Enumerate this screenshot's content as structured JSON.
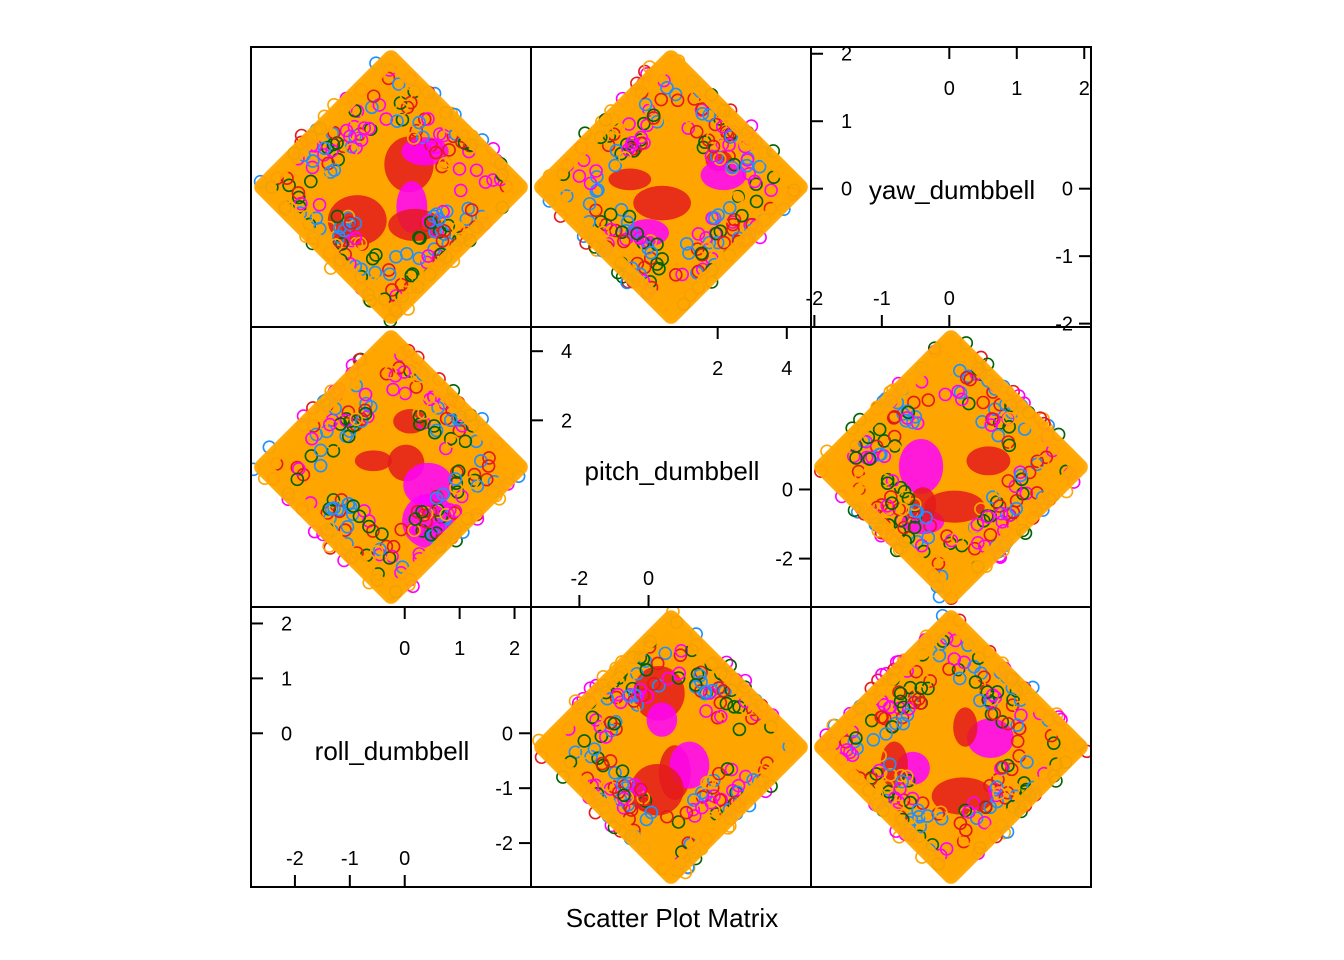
{
  "chart_data": {
    "type": "scatter",
    "title": "Scatter Plot Matrix",
    "variables": [
      "roll_dumbbell",
      "pitch_dumbbell",
      "yaw_dumbbell"
    ],
    "grid": false,
    "groups": [
      {
        "color": "#E41A1C"
      },
      {
        "color": "#FF00FF"
      },
      {
        "color": "#1E90FF"
      },
      {
        "color": "#006400"
      },
      {
        "color": "#FFA500"
      }
    ],
    "axes": {
      "roll_dumbbell": {
        "range": [
          -2.8,
          2.3
        ],
        "ticks_low": [
          -2,
          -1,
          0
        ],
        "ticks_high": [
          0,
          1,
          2
        ],
        "ticks_side_low": [
          -2,
          -1,
          0
        ],
        "ticks_side_high": [
          0,
          1,
          2
        ]
      },
      "pitch_dumbbell": {
        "range": [
          -3.4,
          4.7
        ],
        "ticks_low": [
          -2,
          0
        ],
        "ticks_high": [
          2,
          4
        ],
        "ticks_side_low": [
          -2,
          0
        ],
        "ticks_side_high": [
          2,
          4
        ]
      },
      "yaw_dumbbell": {
        "range": [
          -2.05,
          2.1
        ],
        "ticks_low": [
          -2,
          -1,
          0
        ],
        "ticks_high": [
          0,
          1,
          2
        ],
        "ticks_side_low": [
          -2,
          -1,
          0
        ],
        "ticks_side_high": [
          0,
          1,
          2
        ]
      }
    },
    "tick_labels": {
      "yaw_dumbbell": {
        "top": [
          "0",
          "1",
          "2"
        ],
        "bottom": [
          "-2",
          "-1",
          "0"
        ],
        "left": [
          "-2",
          "-1",
          "0"
        ],
        "right": [
          "0",
          "1",
          "2"
        ]
      },
      "pitch_dumbbell": {
        "top": [
          "2",
          "4"
        ],
        "bottom": [
          "-2",
          "0"
        ],
        "left": [
          "-2",
          "0"
        ],
        "right": [
          "2",
          "4"
        ]
      },
      "roll_dumbbell": {
        "top": [
          "0",
          "1",
          "2"
        ],
        "bottom": [
          "-2",
          "-1",
          "0"
        ],
        "left": [
          "-2",
          "-1",
          "0"
        ],
        "right": [
          "0",
          "1",
          "2"
        ]
      }
    },
    "panel_samples": {
      "roll_vs_pitch": [
        [
          -1.9,
          0.3
        ],
        [
          -1.2,
          1.2
        ],
        [
          -0.4,
          2.1
        ],
        [
          0.3,
          3.3
        ],
        [
          0.9,
          2.6
        ],
        [
          1.5,
          1.4
        ],
        [
          2.0,
          0.5
        ],
        [
          1.3,
          -0.8
        ],
        [
          0.6,
          -1.9
        ],
        [
          -0.1,
          -2.6
        ],
        [
          -0.9,
          -1.6
        ],
        [
          -1.6,
          -0.6
        ]
      ],
      "roll_vs_yaw": [
        [
          -2.1,
          0.0
        ],
        [
          -1.3,
          0.9
        ],
        [
          -0.4,
          1.7
        ],
        [
          0.3,
          1.2
        ],
        [
          1.0,
          0.4
        ],
        [
          1.8,
          0.0
        ],
        [
          1.0,
          -0.8
        ],
        [
          0.2,
          -1.4
        ],
        [
          -0.4,
          -1.8
        ],
        [
          -1.2,
          -0.8
        ]
      ],
      "pitch_vs_yaw": [
        [
          -3.0,
          0.0
        ],
        [
          -1.5,
          0.9
        ],
        [
          0.0,
          1.9
        ],
        [
          1.2,
          1.1
        ],
        [
          2.5,
          0.4
        ],
        [
          3.5,
          -0.1
        ],
        [
          2.0,
          -1.0
        ],
        [
          0.5,
          -1.7
        ],
        [
          -1.0,
          -1.2
        ],
        [
          -2.4,
          -0.5
        ]
      ]
    }
  }
}
